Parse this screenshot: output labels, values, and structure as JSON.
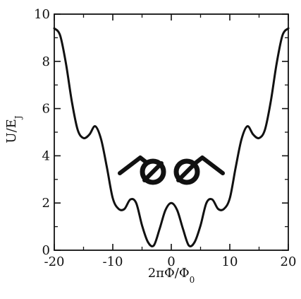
{
  "chart_data": {
    "type": "line",
    "xlabel": "2πΦ/Φ",
    "xlabel_sub": "0",
    "ylabel": "U/E",
    "ylabel_sub": "J",
    "xlim": [
      -20,
      20
    ],
    "ylim": [
      0,
      10
    ],
    "xticks": [
      -20,
      -10,
      0,
      10,
      20
    ],
    "xtick_labels": [
      "-20",
      "-10",
      "0",
      "10",
      "20"
    ],
    "yticks": [
      0,
      2,
      4,
      6,
      8,
      10
    ],
    "ytick_labels": [
      "0",
      "2",
      "4",
      "6",
      "8",
      "10"
    ],
    "grid": false,
    "series": [
      {
        "x": [
          -20,
          -19,
          -18,
          -17,
          -16,
          -15,
          -14,
          -13,
          -12,
          -11,
          -10,
          -9,
          -8,
          -7,
          -6,
          -5,
          -4,
          -3,
          -2,
          -1,
          0,
          1,
          2,
          3,
          4,
          5,
          6,
          7,
          8,
          9,
          10,
          11,
          12,
          13,
          14,
          15,
          16,
          17,
          18,
          19,
          20
        ],
        "y": [
          9.4,
          9.1,
          7.9,
          6.3,
          5.1,
          4.75,
          4.9,
          5.25,
          4.7,
          3.5,
          2.2,
          1.75,
          1.75,
          2.15,
          2.0,
          1.05,
          0.35,
          0.2,
          0.9,
          1.7,
          2.0,
          1.7,
          0.9,
          0.2,
          0.35,
          1.05,
          2.0,
          2.15,
          1.75,
          1.75,
          2.2,
          3.5,
          4.7,
          5.25,
          4.9,
          4.75,
          5.1,
          6.3,
          7.9,
          9.1,
          9.4
        ]
      }
    ]
  }
}
